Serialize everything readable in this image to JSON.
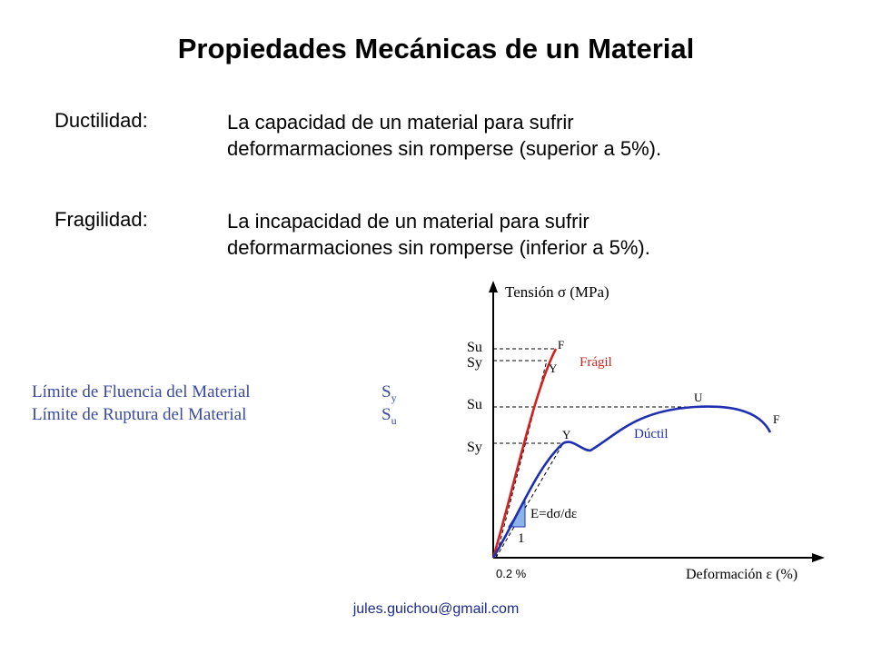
{
  "title": "Propiedades Mecánicas de un Material",
  "definitions": [
    {
      "term": "Ductilidad:",
      "lines": [
        "La capacidad de un material para sufrir",
        "deformarmaciones  sin  romperse (superior a 5%)."
      ]
    },
    {
      "term": "Fragilidad:",
      "lines": [
        "La incapacidad de un material para sufrir",
        "deformarmaciones  sin  romperse (inferior a 5%)."
      ]
    }
  ],
  "legend": [
    {
      "label": "Límite de Fluencia del Material",
      "symbol": "S",
      "subscript": "y"
    },
    {
      "label": "Límite de Ruptura del Material",
      "symbol": "S",
      "subscript": "u"
    }
  ],
  "diagram": {
    "y_axis_label": "Tensión   σ (MPa)",
    "x_axis_label": "Deformación  ε (%)",
    "offset_label": "0.2 %",
    "modulus_label": "E=dσ/dε",
    "slope_unit_label": "1",
    "fragile": {
      "name": "Frágil",
      "su_label": "Su",
      "sy_label": "Sy",
      "yield_point": "Y",
      "fracture_point": "F",
      "color": "#d42020"
    },
    "ductile": {
      "name": "Dúctil",
      "su_label": "Su",
      "sy_label": "Sy",
      "yield_point": "Y",
      "ultimate_point": "U",
      "fracture_point": "F",
      "color": "#1e2fb0"
    },
    "axis_color": "#000000",
    "triangle_fill": "#8db4e8"
  },
  "footer": {
    "email": "jules.guichou@gmail.com"
  }
}
